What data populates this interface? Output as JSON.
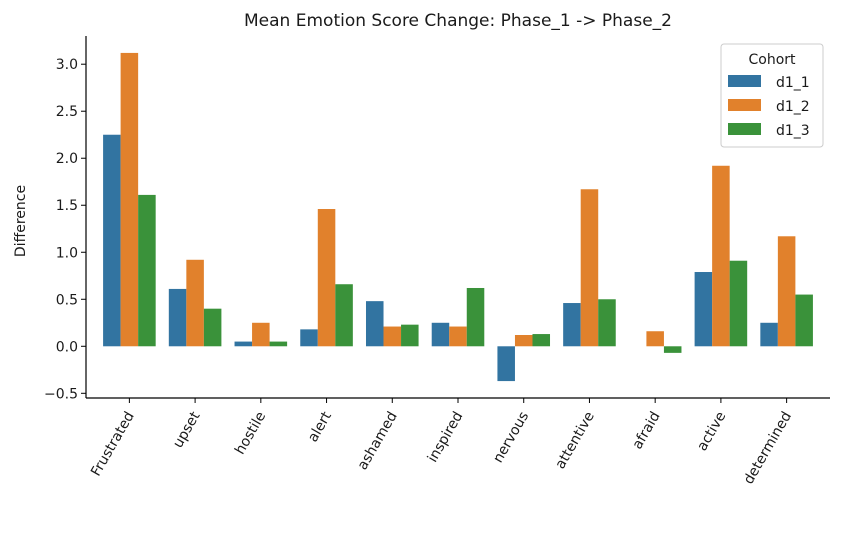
{
  "chart_data": {
    "type": "bar",
    "title": "Mean Emotion Score Change: Phase_1 -> Phase_2",
    "xlabel": "",
    "ylabel": "Difference",
    "categories": [
      "Frustrated",
      "upset",
      "hostile",
      "alert",
      "ashamed",
      "inspired",
      "nervous",
      "attentive",
      "afraid",
      "active",
      "determined"
    ],
    "series": [
      {
        "name": "d1_1",
        "color": "#3274a1",
        "values": [
          2.25,
          0.61,
          0.05,
          0.18,
          0.48,
          0.25,
          -0.37,
          0.46,
          0.0,
          0.79,
          0.25
        ]
      },
      {
        "name": "d1_2",
        "color": "#e1812c",
        "values": [
          3.12,
          0.92,
          0.25,
          1.46,
          0.21,
          0.21,
          0.12,
          1.67,
          0.16,
          1.92,
          1.17
        ]
      },
      {
        "name": "d1_3",
        "color": "#3a923a",
        "values": [
          1.61,
          0.4,
          0.05,
          0.66,
          0.23,
          0.62,
          0.13,
          0.5,
          -0.07,
          0.91,
          0.55
        ]
      }
    ],
    "ylim": [
      -0.55,
      3.3
    ],
    "yticks": [
      -0.5,
      0.0,
      0.5,
      1.0,
      1.5,
      2.0,
      2.5,
      3.0
    ],
    "ytick_labels": [
      "−0.5",
      "0.0",
      "0.5",
      "1.0",
      "1.5",
      "2.0",
      "2.5",
      "3.0"
    ],
    "legend": {
      "title": "Cohort",
      "placement": "top-right"
    },
    "grid": false
  }
}
